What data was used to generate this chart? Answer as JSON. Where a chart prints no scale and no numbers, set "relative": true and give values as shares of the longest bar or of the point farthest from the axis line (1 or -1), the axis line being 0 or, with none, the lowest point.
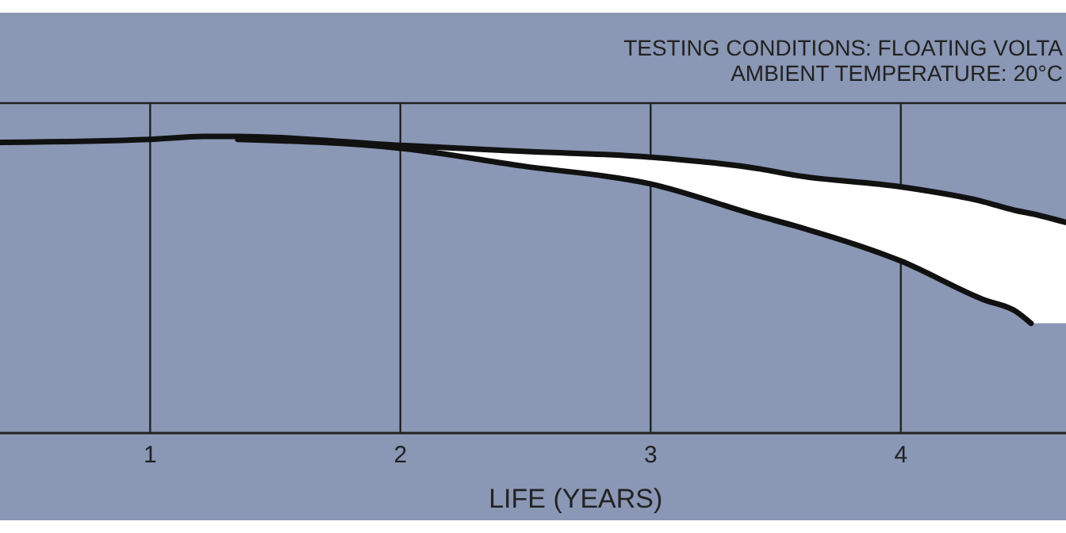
{
  "chart_data": {
    "type": "line",
    "relative": true,
    "xlabel": "LIFE (YEARS)",
    "annotations": [
      "TESTING CONDITIONS: FLOATING VOLTA",
      "AMBIENT TEMPERATURE: 20°C"
    ],
    "xlim": [
      0.4,
      4.66
    ],
    "xticks": [
      1,
      2,
      3,
      4
    ],
    "grid": "x",
    "line_style": "solid",
    "x": [
      0.4,
      1,
      1.22,
      1.35,
      2,
      2.49,
      3,
      3.44,
      3.57,
      4,
      4.33,
      4.46,
      4.52,
      4.66
    ],
    "series": [
      {
        "color": "#111111",
        "values": [
          0.98,
          0.99,
          1.0,
          1.0,
          0.97,
          0.95,
          0.93,
          0.89,
          0.87,
          0.83,
          0.78,
          0.75,
          0.74,
          0.71
        ],
        "lower": [
          0.98,
          0.99,
          1.0,
          0.99,
          0.96,
          0.9,
          0.84,
          0.73,
          0.7,
          0.58,
          0.45,
          0.41,
          0.37,
          0.37
        ],
        "upper": [
          0.98,
          0.99,
          1.0,
          1.0,
          0.97,
          0.95,
          0.93,
          0.89,
          0.87,
          0.83,
          0.78,
          0.75,
          0.74,
          0.71
        ]
      },
      {
        "color": "#111111",
        "values": [
          null,
          null,
          null,
          0.99,
          0.96,
          0.9,
          0.84,
          0.73,
          0.7,
          0.58,
          0.45,
          0.41,
          0.37,
          null
        ]
      }
    ]
  }
}
